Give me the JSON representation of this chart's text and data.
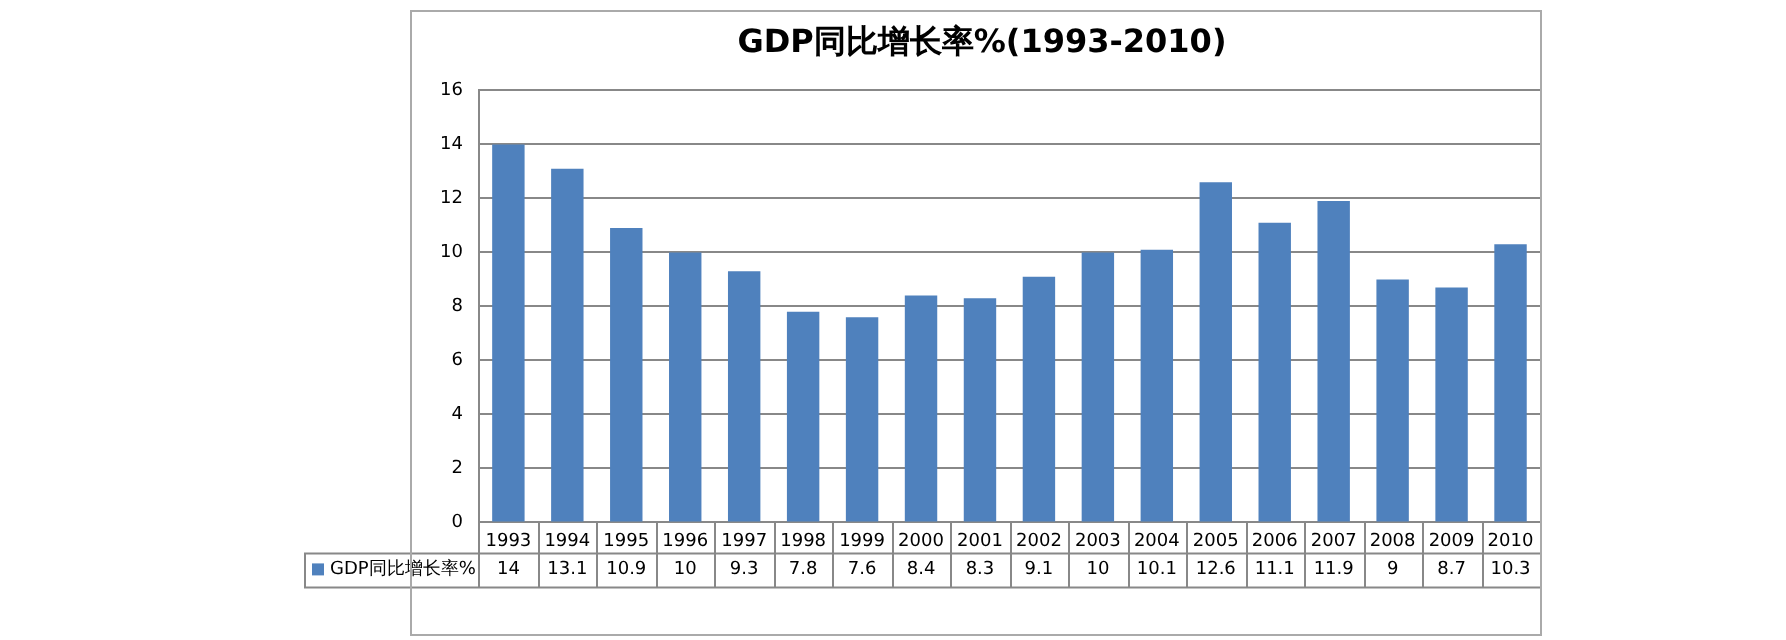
{
  "chart_data": {
    "type": "bar",
    "title": "GDP同比增长率%(1993-2010)",
    "categories": [
      "1993",
      "1994",
      "1995",
      "1996",
      "1997",
      "1998",
      "1999",
      "2000",
      "2001",
      "2002",
      "2003",
      "2004",
      "2005",
      "2006",
      "2007",
      "2008",
      "2009",
      "2010"
    ],
    "series": [
      {
        "name": "GDP同比增长率%",
        "color": "#4f81bd",
        "values": [
          14,
          13.1,
          10.9,
          10,
          9.3,
          7.8,
          7.6,
          8.4,
          8.3,
          9.1,
          10,
          10.1,
          12.6,
          11.1,
          11.9,
          9,
          8.7,
          10.3
        ]
      }
    ],
    "ylim": [
      0,
      16
    ],
    "yticks": [
      0,
      2,
      4,
      6,
      8,
      10,
      12,
      14,
      16
    ],
    "grid": "y",
    "legend": "bottom left",
    "data_labels": true
  }
}
